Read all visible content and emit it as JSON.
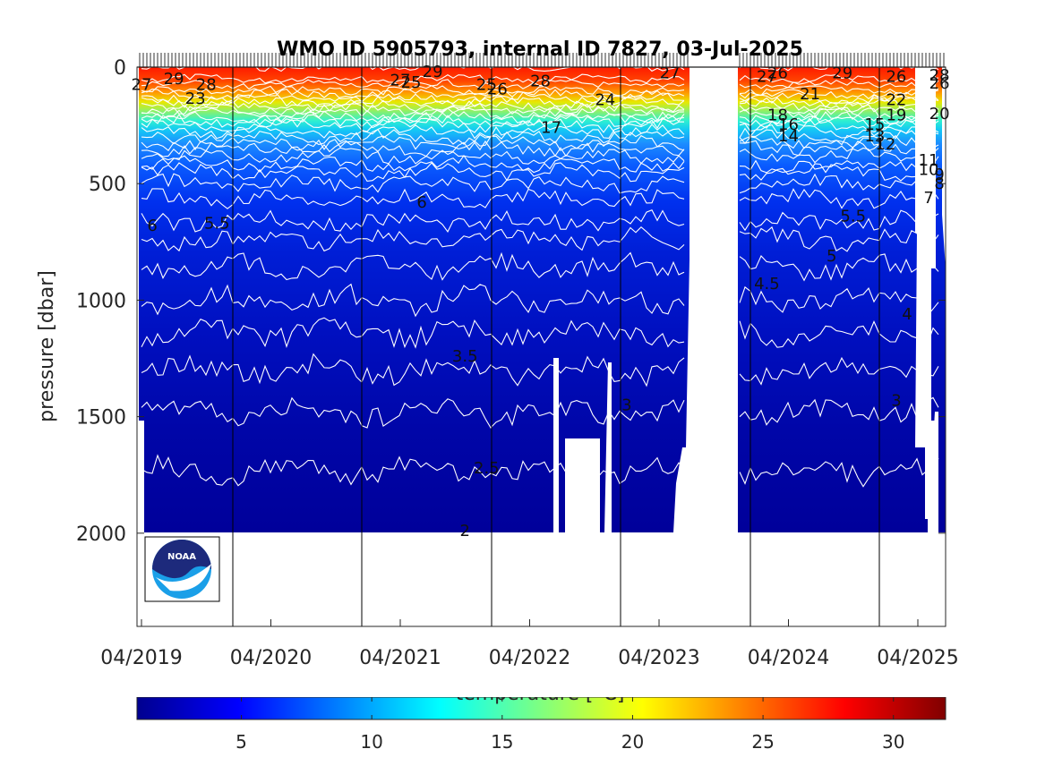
{
  "chart_data": {
    "type": "heatmap",
    "title": "WMO ID 5905793, internal ID 7827, 03-Jul-2025",
    "xlabel": "",
    "ylabel": "pressure [dbar]",
    "colorbar_label": "temperature [°C]",
    "x_tick_labels": [
      "04/2019",
      "04/2020",
      "04/2021",
      "04/2022",
      "04/2023",
      "04/2024",
      "04/2025"
    ],
    "y_ticks": [
      0,
      500,
      1000,
      1500,
      2000
    ],
    "ylim": [
      2400,
      0
    ],
    "colorbar_ticks": [
      5,
      10,
      15,
      20,
      25,
      30
    ],
    "colorbar_range": [
      1,
      32
    ],
    "colormap": "jet",
    "grid": "vertical lines at year boundaries",
    "data_gap": {
      "from": "2023-08",
      "to": "2024-01"
    },
    "isotherms_degC": [
      29,
      28,
      27,
      26,
      25,
      24,
      23,
      22,
      21,
      20,
      19,
      18,
      17,
      16,
      15,
      14,
      13,
      12,
      11,
      10,
      9,
      8,
      7,
      6,
      5.5,
      5,
      4.5,
      4,
      3.5,
      3,
      2.5,
      2
    ],
    "temperature_profile": [
      {
        "pressure": 0,
        "temperature": 28
      },
      {
        "pressure": 50,
        "temperature": 27
      },
      {
        "pressure": 100,
        "temperature": 25
      },
      {
        "pressure": 150,
        "temperature": 22
      },
      {
        "pressure": 200,
        "temperature": 19
      },
      {
        "pressure": 250,
        "temperature": 16
      },
      {
        "pressure": 300,
        "temperature": 14
      },
      {
        "pressure": 350,
        "temperature": 12
      },
      {
        "pressure": 400,
        "temperature": 10.5
      },
      {
        "pressure": 450,
        "temperature": 9
      },
      {
        "pressure": 500,
        "temperature": 8
      },
      {
        "pressure": 600,
        "temperature": 6.5
      },
      {
        "pressure": 700,
        "temperature": 5.7
      },
      {
        "pressure": 800,
        "temperature": 5.2
      },
      {
        "pressure": 1000,
        "temperature": 4.5
      },
      {
        "pressure": 1200,
        "temperature": 3.8
      },
      {
        "pressure": 1400,
        "temperature": 3.2
      },
      {
        "pressure": 1600,
        "temperature": 2.7
      },
      {
        "pressure": 1800,
        "temperature": 2.4
      },
      {
        "pressure": 2000,
        "temperature": 2.1
      }
    ],
    "contour_labels": [
      {
        "text": "27",
        "date": "2019-04",
        "pressure": 75
      },
      {
        "text": "29",
        "date": "2019-07",
        "pressure": 50
      },
      {
        "text": "28",
        "date": "2019-10",
        "pressure": 75
      },
      {
        "text": "23",
        "date": "2019-09",
        "pressure": 135
      },
      {
        "text": "6",
        "date": "2019-05",
        "pressure": 680
      },
      {
        "text": "5.5",
        "date": "2019-11",
        "pressure": 670
      },
      {
        "text": "27",
        "date": "2021-04",
        "pressure": 55
      },
      {
        "text": "25",
        "date": "2021-05",
        "pressure": 65
      },
      {
        "text": "29",
        "date": "2021-07",
        "pressure": 20
      },
      {
        "text": "6",
        "date": "2021-06",
        "pressure": 580
      },
      {
        "text": "3.5",
        "date": "2021-10",
        "pressure": 1240
      },
      {
        "text": "2.5",
        "date": "2021-12",
        "pressure": 1720
      },
      {
        "text": "2",
        "date": "2021-10",
        "pressure": 1990
      },
      {
        "text": "25",
        "date": "2021-12",
        "pressure": 75
      },
      {
        "text": "26",
        "date": "2022-01",
        "pressure": 95
      },
      {
        "text": "28",
        "date": "2022-05",
        "pressure": 60
      },
      {
        "text": "17",
        "date": "2022-06",
        "pressure": 260
      },
      {
        "text": "24",
        "date": "2022-11",
        "pressure": 140
      },
      {
        "text": "3",
        "date": "2023-01",
        "pressure": 1450
      },
      {
        "text": "27",
        "date": "2023-05",
        "pressure": 25
      },
      {
        "text": "27",
        "date": "2024-02",
        "pressure": 40
      },
      {
        "text": "26",
        "date": "2024-03",
        "pressure": 25
      },
      {
        "text": "18",
        "date": "2024-03",
        "pressure": 205
      },
      {
        "text": "16",
        "date": "2024-04",
        "pressure": 245
      },
      {
        "text": "14",
        "date": "2024-04",
        "pressure": 295
      },
      {
        "text": "21",
        "date": "2024-06",
        "pressure": 115
      },
      {
        "text": "4.5",
        "date": "2024-02",
        "pressure": 930
      },
      {
        "text": "5",
        "date": "2024-08",
        "pressure": 810
      },
      {
        "text": "5.5",
        "date": "2024-10",
        "pressure": 640
      },
      {
        "text": "29",
        "date": "2024-09",
        "pressure": 25
      },
      {
        "text": "15",
        "date": "2024-12",
        "pressure": 245
      },
      {
        "text": "13",
        "date": "2024-12",
        "pressure": 295
      },
      {
        "text": "12",
        "date": "2025-01",
        "pressure": 330
      },
      {
        "text": "26",
        "date": "2025-02",
        "pressure": 40
      },
      {
        "text": "22",
        "date": "2025-02",
        "pressure": 140
      },
      {
        "text": "19",
        "date": "2025-02",
        "pressure": 205
      },
      {
        "text": "4",
        "date": "2025-03",
        "pressure": 1060
      },
      {
        "text": "3",
        "date": "2025-02",
        "pressure": 1430
      },
      {
        "text": "28",
        "date": "2025-06",
        "pressure": 35
      },
      {
        "text": "26",
        "date": "2025-06",
        "pressure": 70
      },
      {
        "text": "20",
        "date": "2025-06",
        "pressure": 200
      },
      {
        "text": "11",
        "date": "2025-05",
        "pressure": 400
      },
      {
        "text": "10",
        "date": "2025-05",
        "pressure": 440
      },
      {
        "text": "9",
        "date": "2025-06",
        "pressure": 460
      },
      {
        "text": "8",
        "date": "2025-06",
        "pressure": 500
      },
      {
        "text": "7",
        "date": "2025-05",
        "pressure": 560
      }
    ],
    "logo": "NOAA"
  },
  "colors": {
    "background": "#ffffff",
    "axis": "#262626",
    "contour_line": "#ffffff"
  }
}
